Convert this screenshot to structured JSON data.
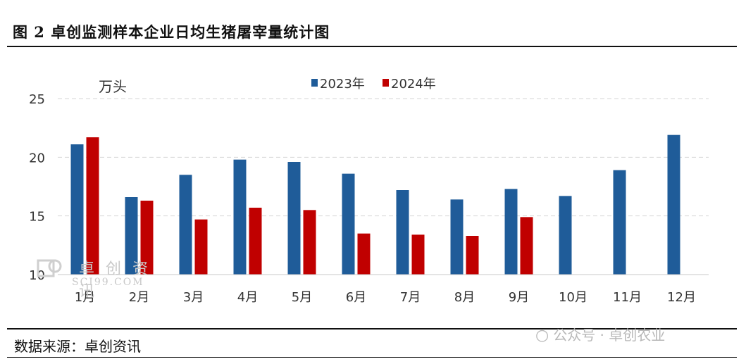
{
  "title": "图 2 卓创监测样本企业日均生猪屠宰量统计图",
  "source": "数据来源：卓创资讯",
  "watermark_wechat": "公众号 · 卓创农业",
  "watermark_brand_cn": "卓创资讯",
  "watermark_brand_en": "SCI99.COM",
  "chart_data": {
    "type": "bar",
    "ylabel": "万头",
    "ylim": [
      10,
      25
    ],
    "yticks": [
      10,
      15,
      20,
      25
    ],
    "grid": true,
    "legend_position": "top-center",
    "categories": [
      "1月",
      "2月",
      "3月",
      "4月",
      "5月",
      "6月",
      "7月",
      "8月",
      "9月",
      "10月",
      "11月",
      "12月"
    ],
    "series": [
      {
        "name": "2023年",
        "color": "#1f5c99",
        "values": [
          21.1,
          16.6,
          18.5,
          19.8,
          19.6,
          18.6,
          17.2,
          16.4,
          17.3,
          16.7,
          18.9,
          21.9
        ]
      },
      {
        "name": "2024年",
        "color": "#c00000",
        "values": [
          21.7,
          16.3,
          14.7,
          15.7,
          15.5,
          13.5,
          13.4,
          13.3,
          14.9,
          null,
          null,
          null
        ]
      }
    ]
  }
}
